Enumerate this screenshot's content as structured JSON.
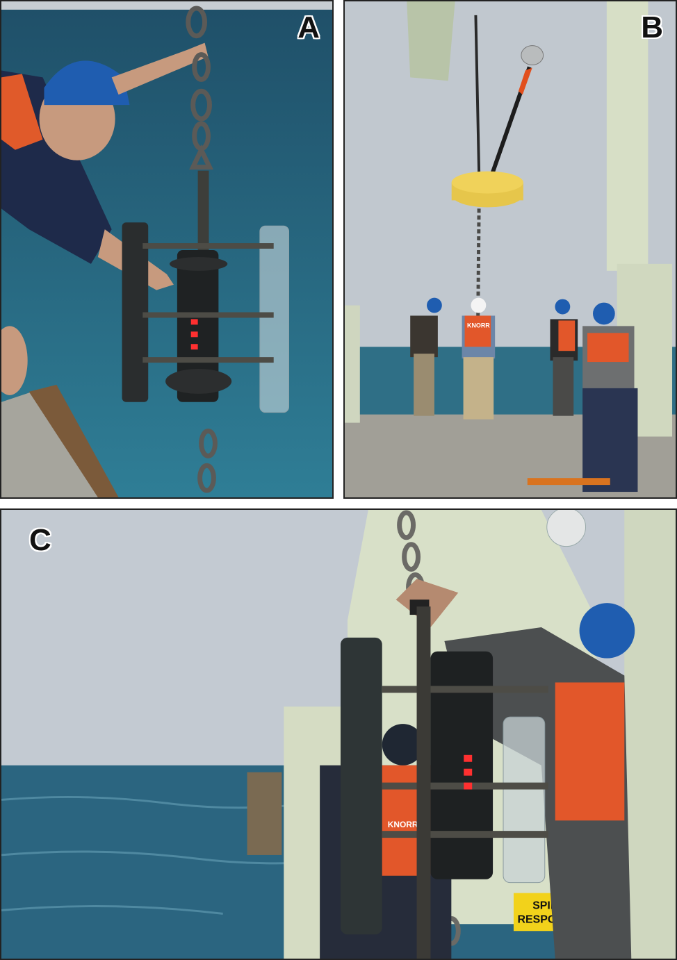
{
  "panels": [
    {
      "label": "A"
    },
    {
      "label": "B"
    },
    {
      "label": "C"
    }
  ],
  "vest_text": {
    "b": "KNORR",
    "c": "KNORR"
  },
  "sign_text": {
    "line1": "SPILL",
    "line2": "RESPONSE"
  },
  "colors": {
    "sea": "#2f6f86",
    "sea_dark": "#1d4f66",
    "sky": "#b9c3cc",
    "deck": "#9c9a92",
    "ship_green": "#d7dfc6",
    "hardhat_blue": "#1f5db0",
    "vest_orange": "#e2572a",
    "float_yellow": "#e5c449",
    "instrument": "#2a2d2e"
  }
}
